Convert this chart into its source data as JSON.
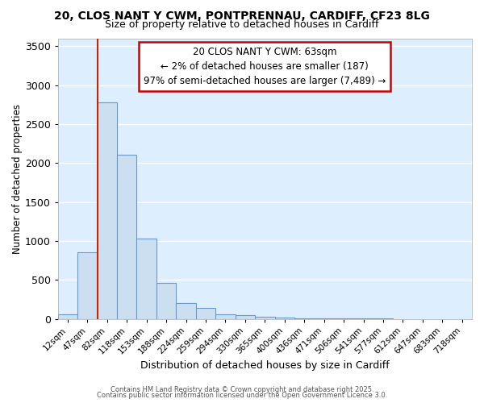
{
  "title_line1": "20, CLOS NANT Y CWM, PONTPRENNAU, CARDIFF, CF23 8LG",
  "title_line2": "Size of property relative to detached houses in Cardiff",
  "xlabel": "Distribution of detached houses by size in Cardiff",
  "ylabel": "Number of detached properties",
  "bar_labels": [
    "12sqm",
    "47sqm",
    "82sqm",
    "118sqm",
    "153sqm",
    "188sqm",
    "224sqm",
    "259sqm",
    "294sqm",
    "330sqm",
    "365sqm",
    "400sqm",
    "436sqm",
    "471sqm",
    "506sqm",
    "541sqm",
    "577sqm",
    "612sqm",
    "647sqm",
    "683sqm",
    "718sqm"
  ],
  "bar_values": [
    55,
    855,
    2775,
    2105,
    1030,
    460,
    200,
    145,
    60,
    45,
    28,
    12,
    8,
    4,
    2,
    1,
    1,
    0,
    0,
    0,
    0
  ],
  "bar_color": "#ccdff0",
  "bar_edge_color": "#6699cc",
  "red_line_x": 1.5,
  "annotation_title": "20 CLOS NANT Y CWM: 63sqm",
  "annotation_line2": "← 2% of detached houses are smaller (187)",
  "annotation_line3": "97% of semi-detached houses are larger (7,489) →",
  "annotation_box_color": "#ffffff",
  "annotation_box_edge": "#cc0000",
  "red_line_color": "#cc2200",
  "ylim": [
    0,
    3600
  ],
  "yticks": [
    0,
    500,
    1000,
    1500,
    2000,
    2500,
    3000,
    3500
  ],
  "bg_color": "#ddeeff",
  "grid_color": "#ffffff",
  "fig_bg_color": "#ffffff",
  "footer_line1": "Contains HM Land Registry data © Crown copyright and database right 2025.",
  "footer_line2": "Contains public sector information licensed under the Open Government Licence 3.0."
}
